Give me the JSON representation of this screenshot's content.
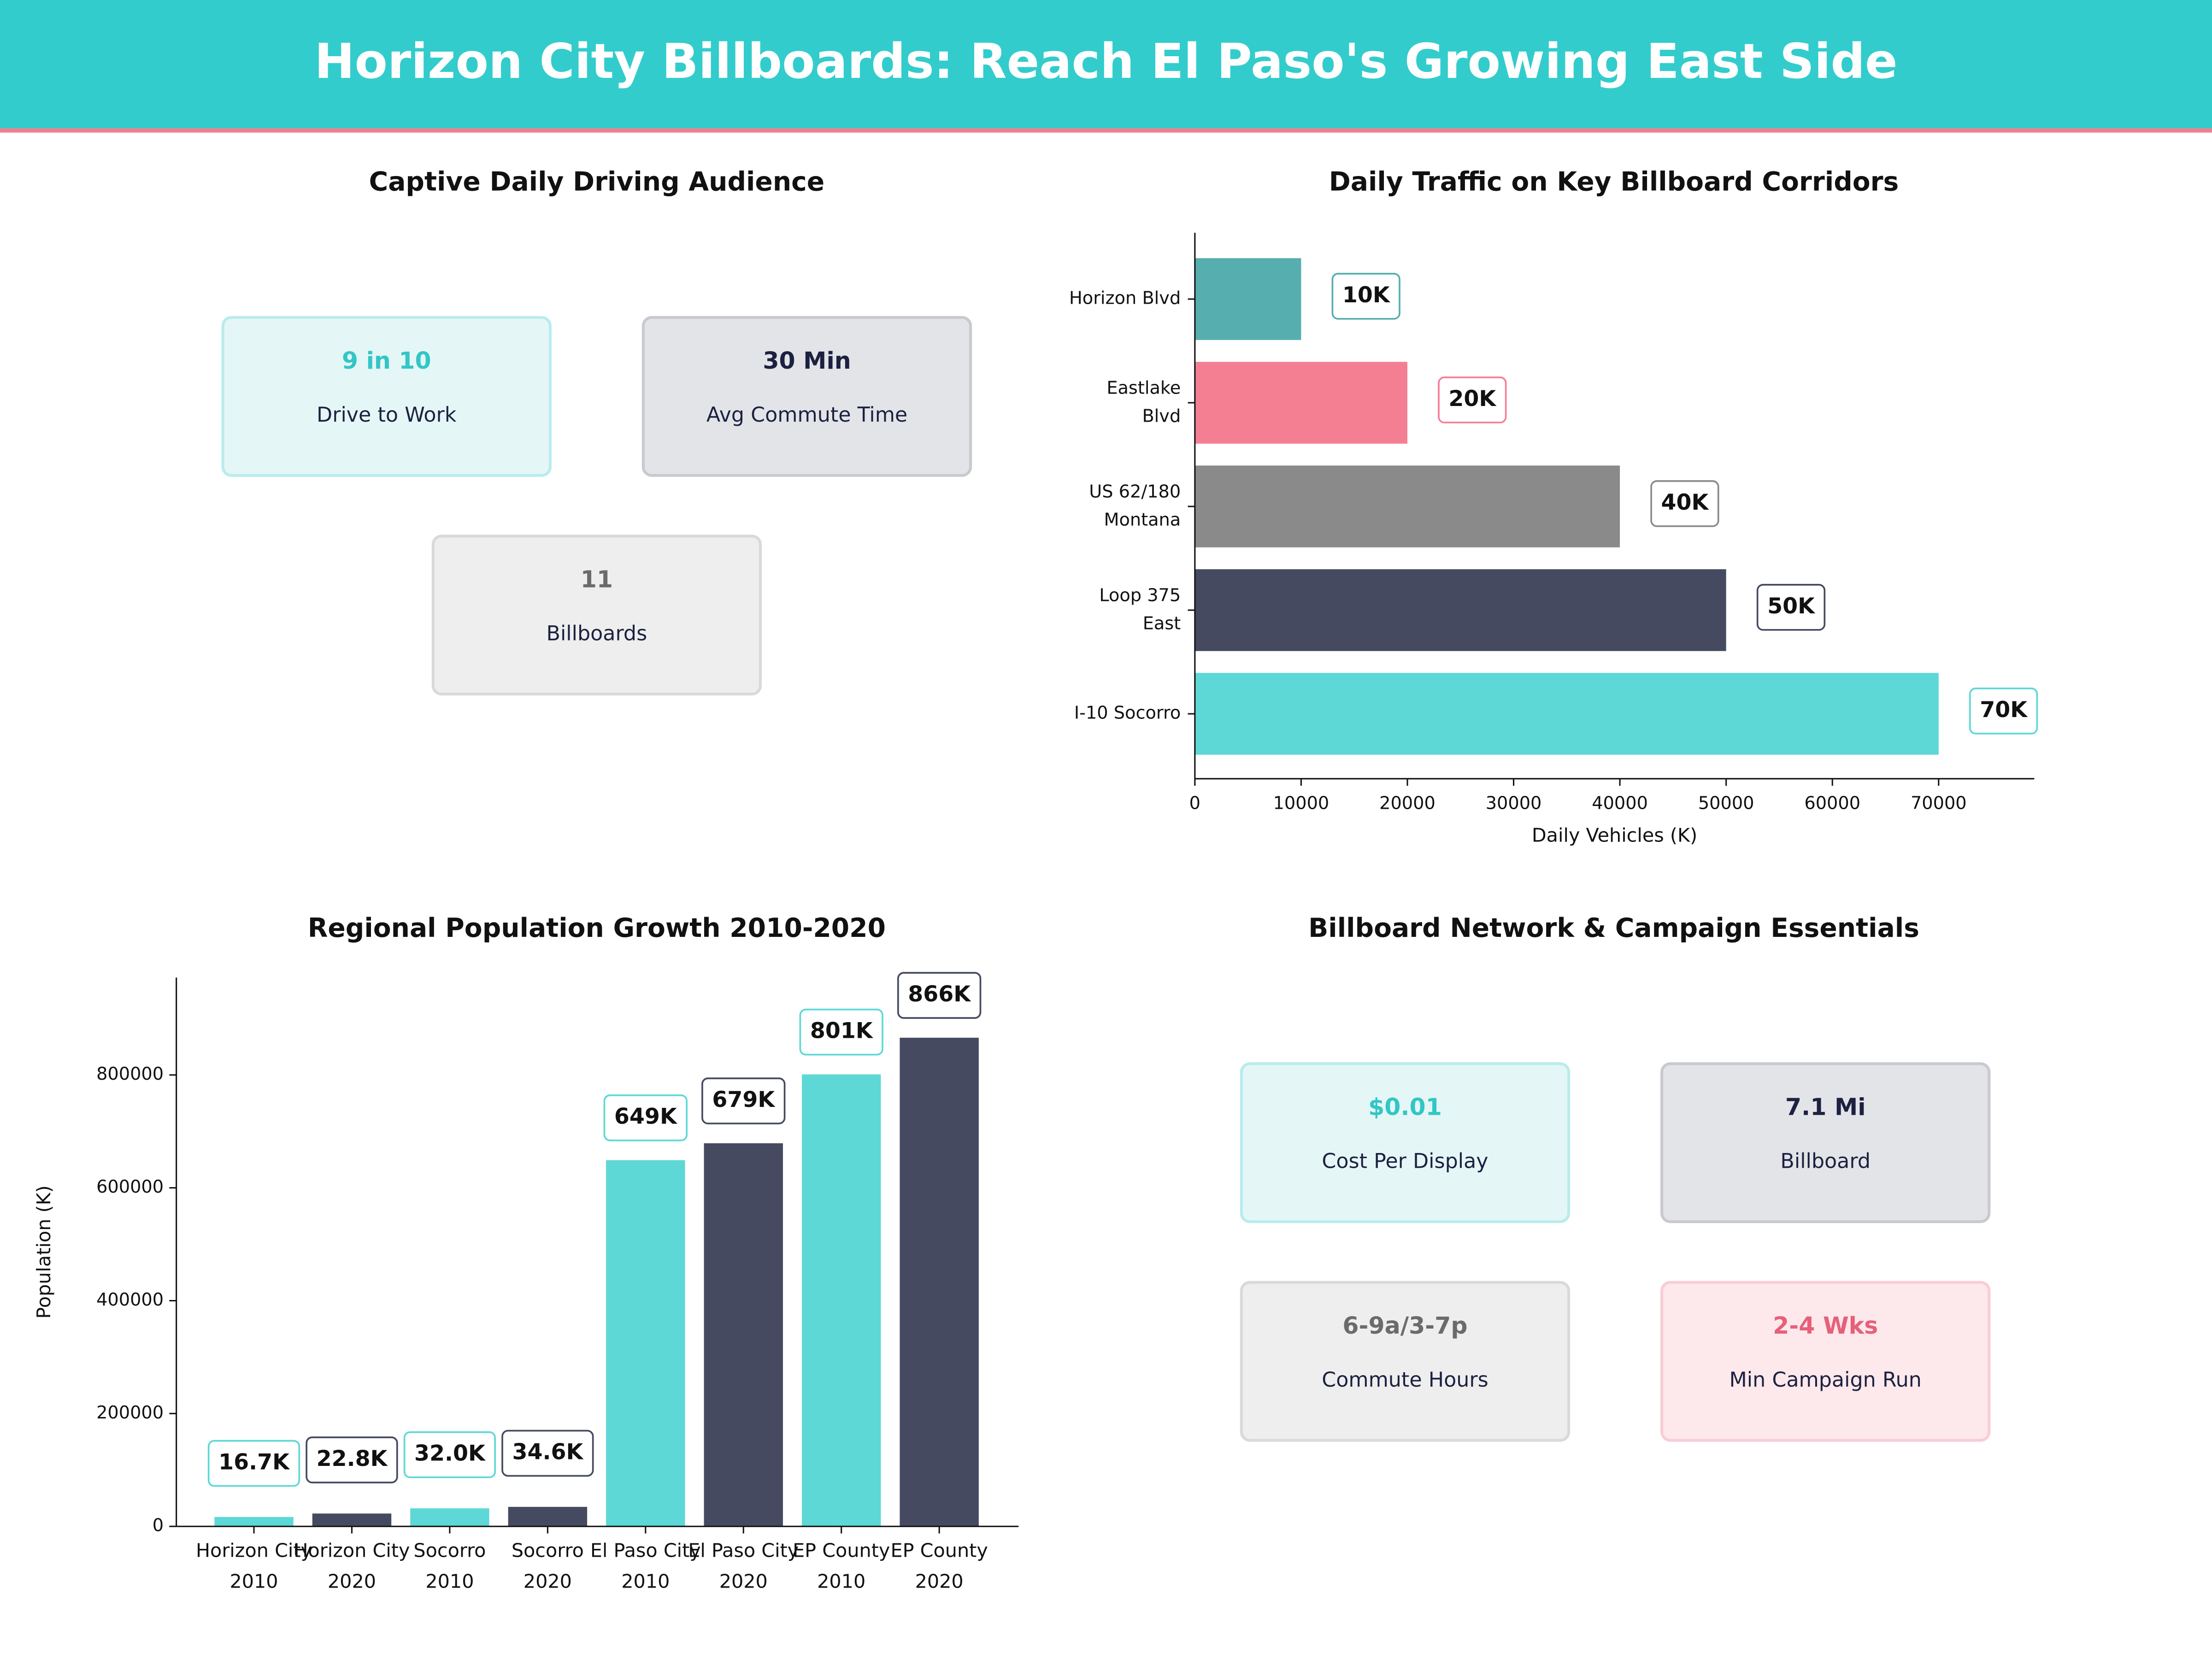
{
  "header": {
    "title": "Horizon City Billboards: Reach El Paso's Growing East Side"
  },
  "audience_panel": {
    "title": "Captive Daily Driving Audience",
    "cards": [
      {
        "value": "9 in 10",
        "label": "Drive to Work"
      },
      {
        "value": "30 Min",
        "label": "Avg Commute Time"
      },
      {
        "value": "11",
        "label": "Billboards"
      }
    ]
  },
  "chart_data": [
    {
      "type": "bar",
      "orientation": "horizontal",
      "title": "Daily Traffic on Key Billboard Corridors",
      "categories": [
        "Horizon Blvd",
        "Eastlake\nBlvd",
        "US 62/180\nMontana",
        "Loop 375\nEast",
        "I-10 Socorro"
      ],
      "values": [
        10000,
        20000,
        40000,
        50000,
        70000
      ],
      "value_labels": [
        "10K",
        "20K",
        "40K",
        "50K",
        "70K"
      ],
      "colors": [
        "#57aeae",
        "#f47f93",
        "#8a8a8a",
        "#464a60",
        "#5dd8d6"
      ],
      "xlabel": "Daily Vehicles (K)",
      "xlim": [
        0,
        79000
      ],
      "xticks": [
        0,
        10000,
        20000,
        30000,
        40000,
        50000,
        60000,
        70000
      ]
    },
    {
      "type": "bar",
      "orientation": "vertical",
      "title": "Regional Population Growth 2010-2020",
      "categories": [
        "Horizon City\n2010",
        "Horizon City\n2020",
        "Socorro\n2010",
        "Socorro\n2020",
        "El Paso City\n2010",
        "El Paso City\n2020",
        "EP County\n2010",
        "EP County\n2020"
      ],
      "values": [
        16700,
        22800,
        32000,
        34600,
        649000,
        679000,
        801000,
        866000
      ],
      "value_labels": [
        "16.7K",
        "22.8K",
        "32.0K",
        "34.6K",
        "649K",
        "679K",
        "801K",
        "866K"
      ],
      "colors": [
        "#5dd8d6",
        "#464a60",
        "#5dd8d6",
        "#464a60",
        "#5dd8d6",
        "#464a60",
        "#5dd8d6",
        "#464a60"
      ],
      "ylabel": "Population (K)",
      "ylim": [
        0,
        972500
      ],
      "yticks": [
        0,
        200000,
        400000,
        600000,
        800000
      ]
    }
  ],
  "essentials_panel": {
    "title": "Billboard Network & Campaign Essentials",
    "cards": [
      {
        "value": "$0.01",
        "label": "Cost Per Display"
      },
      {
        "value": "7.1 Mi",
        "label": "Billboard"
      },
      {
        "value": "6-9a/3-7p",
        "label": "Commute Hours"
      },
      {
        "value": "2-4 Wks",
        "label": "Min Campaign Run"
      }
    ]
  }
}
